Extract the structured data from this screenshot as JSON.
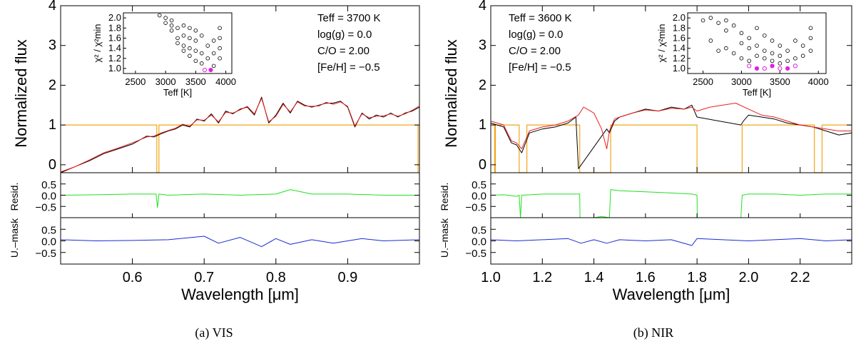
{
  "colors": {
    "observed": "#000000",
    "model": "#e8211e",
    "mask": "#f2a51a",
    "resid": "#22e022",
    "umask_resid": "#1a2bd6",
    "inset_point": "#000000",
    "inset_best": "#e020e0"
  },
  "chart_data": [
    {
      "id": "vis",
      "type": "line",
      "caption": "(a) VIS",
      "xlabel": "Wavelength [μm]",
      "xlim": [
        0.5,
        1.0
      ],
      "xticks": [
        0.6,
        0.7,
        0.8,
        0.9
      ],
      "xtick_labels": [
        "0.6",
        "0.7",
        "0.8",
        "0.9"
      ],
      "main": {
        "ylabel": "Normalized flux",
        "ylim": [
          -0.2,
          4.0
        ],
        "yticks": [
          0,
          1,
          2,
          3,
          4
        ],
        "ytick_labels": [
          "0",
          "1",
          "2",
          "3",
          "4"
        ],
        "legend_lines": [
          "Teff = 3700 K",
          "log(g) = 0.0",
          "C/O = 2.00",
          "[Fe/H] = −0.5"
        ],
        "series": [
          {
            "name": "Observed",
            "x": [
              0.5,
              0.52,
              0.54,
              0.56,
              0.58,
              0.6,
              0.62,
              0.63,
              0.64,
              0.65,
              0.66,
              0.67,
              0.68,
              0.69,
              0.7,
              0.71,
              0.72,
              0.73,
              0.74,
              0.75,
              0.76,
              0.77,
              0.78,
              0.79,
              0.8,
              0.81,
              0.82,
              0.83,
              0.84,
              0.85,
              0.86,
              0.87,
              0.88,
              0.89,
              0.9,
              0.91,
              0.92,
              0.93,
              0.94,
              0.95,
              0.96,
              0.97,
              0.98,
              0.99,
              1.0
            ],
            "y": [
              -0.2,
              -0.05,
              0.1,
              0.28,
              0.4,
              0.52,
              0.72,
              0.7,
              0.78,
              0.85,
              0.9,
              1.0,
              0.95,
              1.15,
              1.1,
              1.28,
              1.05,
              1.35,
              1.28,
              1.4,
              1.45,
              1.25,
              1.7,
              1.05,
              1.25,
              1.55,
              1.3,
              1.6,
              1.5,
              1.45,
              1.5,
              1.55,
              1.55,
              1.6,
              1.45,
              0.95,
              1.3,
              1.15,
              1.25,
              1.2,
              1.3,
              1.2,
              1.3,
              1.35,
              1.45
            ]
          },
          {
            "name": "Model",
            "x": [
              0.5,
              0.52,
              0.54,
              0.56,
              0.58,
              0.6,
              0.62,
              0.63,
              0.64,
              0.65,
              0.66,
              0.67,
              0.68,
              0.69,
              0.7,
              0.71,
              0.72,
              0.73,
              0.74,
              0.75,
              0.76,
              0.77,
              0.78,
              0.79,
              0.8,
              0.81,
              0.82,
              0.83,
              0.84,
              0.85,
              0.86,
              0.87,
              0.88,
              0.89,
              0.9,
              0.91,
              0.92,
              0.93,
              0.94,
              0.95,
              0.96,
              0.97,
              0.98,
              0.99,
              1.0
            ],
            "y": [
              -0.18,
              -0.05,
              0.12,
              0.3,
              0.42,
              0.55,
              0.7,
              0.72,
              0.8,
              0.86,
              0.92,
              1.02,
              0.97,
              1.13,
              1.12,
              1.25,
              1.08,
              1.32,
              1.3,
              1.38,
              1.47,
              1.28,
              1.67,
              1.08,
              1.22,
              1.52,
              1.33,
              1.58,
              1.48,
              1.47,
              1.48,
              1.57,
              1.52,
              1.58,
              1.47,
              0.98,
              1.28,
              1.18,
              1.22,
              1.23,
              1.28,
              1.22,
              1.28,
              1.37,
              1.48
            ]
          },
          {
            "name": "Mask",
            "x": [
              0.5,
              0.634,
              0.634,
              0.637,
              0.637,
              0.998,
              0.998
            ],
            "y": [
              1.0,
              1.0,
              -0.2,
              -0.2,
              1.0,
              1.0,
              -0.2
            ]
          }
        ]
      },
      "resid": {
        "ylabel": "Resid.",
        "ylim": [
          -1.0,
          1.0
        ],
        "yticks": [
          0.5,
          0.0,
          -0.5
        ],
        "ytick_labels": [
          "0.5",
          "0.0",
          "−0.5"
        ],
        "series": [
          {
            "name": "Residual",
            "x": [
              0.5,
              0.55,
              0.6,
              0.633,
              0.635,
              0.637,
              0.65,
              0.7,
              0.75,
              0.8,
              0.82,
              0.85,
              0.9,
              0.95,
              1.0
            ],
            "y": [
              0.0,
              0.02,
              0.05,
              0.05,
              -0.55,
              0.05,
              0.0,
              0.05,
              0.0,
              0.05,
              0.25,
              0.05,
              0.05,
              0.0,
              0.0
            ]
          }
        ]
      },
      "umask": {
        "ylabel": "U.–mask",
        "ylim": [
          -1.0,
          1.0
        ],
        "yticks": [
          0.5,
          0.0,
          -0.5
        ],
        "ytick_labels": [
          "0.5",
          "0.0",
          "−0.5"
        ],
        "series": [
          {
            "name": "Unmasked residual",
            "x": [
              0.5,
              0.55,
              0.6,
              0.65,
              0.7,
              0.72,
              0.75,
              0.78,
              0.8,
              0.82,
              0.85,
              0.88,
              0.9,
              0.92,
              0.95,
              1.0
            ],
            "y": [
              0.05,
              0.0,
              0.02,
              0.05,
              0.2,
              -0.1,
              0.15,
              -0.25,
              0.1,
              -0.15,
              0.05,
              -0.1,
              0.0,
              0.1,
              0.0,
              0.05
            ]
          }
        ]
      },
      "inset": {
        "xlabel": "Teff [K]",
        "ylabel": "χ² / χ²min",
        "xlim": [
          2300,
          4100
        ],
        "ylim": [
          0.9,
          2.1
        ],
        "xticks": [
          2500,
          3000,
          3500,
          4000
        ],
        "xtick_labels": [
          "2500",
          "3000",
          "3500",
          "4000"
        ],
        "yticks": [
          1.0,
          1.2,
          1.4,
          1.6,
          1.8,
          2.0
        ],
        "ytick_labels": [
          "1.0",
          "1.2",
          "1.4",
          "1.6",
          "1.8",
          "2.0"
        ],
        "points_x": [
          2900,
          3000,
          3000,
          3100,
          3100,
          3100,
          3200,
          3200,
          3200,
          3300,
          3300,
          3300,
          3300,
          3400,
          3400,
          3400,
          3400,
          3500,
          3500,
          3500,
          3500,
          3600,
          3600,
          3600,
          3700,
          3700,
          3800,
          3800,
          3800,
          3900,
          3900,
          3900,
          3900
        ],
        "points_y": [
          2.05,
          2.0,
          1.9,
          1.75,
          1.85,
          1.95,
          1.5,
          1.6,
          1.8,
          1.35,
          1.45,
          1.65,
          1.85,
          1.25,
          1.4,
          1.6,
          1.8,
          1.15,
          1.35,
          1.55,
          1.75,
          1.1,
          1.3,
          1.65,
          1.2,
          1.45,
          1.05,
          1.3,
          1.55,
          1.2,
          1.4,
          1.6,
          1.8
        ],
        "best_x": [
          3650,
          3750
        ],
        "best_y": [
          0.97,
          0.97
        ]
      }
    },
    {
      "id": "nir",
      "type": "line",
      "caption": "(b) NIR",
      "xlabel": "Wavelength [μm]",
      "xlim": [
        1.0,
        2.4
      ],
      "xticks": [
        1.0,
        1.2,
        1.4,
        1.6,
        1.8,
        2.0,
        2.2
      ],
      "xtick_labels": [
        "1.0",
        "1.2",
        "1.4",
        "1.6",
        "1.8",
        "2.0",
        "2.2"
      ],
      "main": {
        "ylabel": "Normalized flux",
        "ylim": [
          -0.2,
          4.0
        ],
        "yticks": [
          0,
          1,
          2,
          3,
          4
        ],
        "ytick_labels": [
          "0",
          "1",
          "2",
          "3",
          "4"
        ],
        "legend_lines": [
          "Teff = 3600 K",
          "log(g) = 0.0",
          "C/O = 2.00",
          "[Fe/H] = −0.5"
        ],
        "series": [
          {
            "name": "Observed",
            "x": [
              1.0,
              1.05,
              1.08,
              1.1,
              1.12,
              1.15,
              1.2,
              1.25,
              1.3,
              1.33,
              1.34,
              1.45,
              1.46,
              1.48,
              1.5,
              1.55,
              1.6,
              1.65,
              1.7,
              1.75,
              1.78,
              1.8,
              1.97,
              1.98,
              2.0,
              2.05,
              2.1,
              2.15,
              2.2,
              2.25,
              2.3,
              2.35,
              2.4
            ],
            "y": [
              1.05,
              0.95,
              0.55,
              0.5,
              0.3,
              0.8,
              0.9,
              0.95,
              1.05,
              1.2,
              -0.1,
              0.9,
              0.8,
              1.1,
              1.2,
              1.3,
              1.4,
              1.35,
              1.45,
              1.4,
              1.5,
              1.2,
              1.0,
              1.1,
              1.25,
              1.2,
              1.15,
              1.05,
              1.0,
              0.95,
              0.85,
              0.75,
              0.8
            ]
          },
          {
            "name": "Model",
            "x": [
              1.0,
              1.05,
              1.08,
              1.1,
              1.12,
              1.15,
              1.2,
              1.25,
              1.3,
              1.34,
              1.36,
              1.4,
              1.43,
              1.45,
              1.46,
              1.48,
              1.5,
              1.55,
              1.6,
              1.65,
              1.7,
              1.75,
              1.78,
              1.8,
              1.85,
              1.9,
              1.95,
              2.0,
              2.05,
              2.1,
              2.15,
              2.2,
              2.25,
              2.3,
              2.35,
              2.4
            ],
            "y": [
              1.1,
              1.0,
              0.6,
              0.55,
              0.4,
              0.85,
              0.95,
              1.0,
              1.1,
              1.25,
              1.45,
              1.3,
              0.9,
              0.4,
              0.85,
              1.15,
              1.2,
              1.3,
              1.38,
              1.35,
              1.42,
              1.4,
              1.45,
              1.35,
              1.45,
              1.5,
              1.55,
              1.4,
              1.25,
              1.2,
              1.1,
              1.0,
              0.95,
              0.9,
              0.85,
              0.85
            ]
          },
          {
            "name": "Mask",
            "x": [
              1.0,
              1.015,
              1.015,
              1.018,
              1.018,
              1.11,
              1.11,
              1.14,
              1.14,
              1.345,
              1.345,
              1.465,
              1.465,
              1.8,
              1.8,
              1.975,
              1.975,
              2.255,
              2.255,
              2.285,
              2.285,
              2.4
            ],
            "y": [
              1.0,
              1.0,
              -0.2,
              -0.2,
              1.0,
              1.0,
              -0.2,
              -0.2,
              1.0,
              1.0,
              -0.2,
              -0.2,
              1.0,
              1.0,
              -0.2,
              -0.2,
              1.0,
              1.0,
              -0.2,
              -0.2,
              1.0,
              1.0
            ]
          }
        ]
      },
      "resid": {
        "ylabel": "Resid.",
        "ylim": [
          -1.0,
          1.0
        ],
        "yticks": [
          0.5,
          0.0,
          -0.5
        ],
        "ytick_labels": [
          "0.5",
          "0.0",
          "−0.5"
        ],
        "series": [
          {
            "name": "Residual",
            "x": [
              1.0,
              1.05,
              1.1,
              1.11,
              1.115,
              1.12,
              1.2,
              1.3,
              1.345,
              1.346,
              1.4,
              1.43,
              1.46,
              1.465,
              1.5,
              1.6,
              1.7,
              1.78,
              1.8,
              1.801,
              1.97,
              1.975,
              2.0,
              2.1,
              2.2,
              2.3,
              2.4
            ],
            "y": [
              0.0,
              0.02,
              -0.05,
              0.0,
              -1.0,
              0.0,
              0.05,
              0.05,
              0.05,
              -1.0,
              -1.0,
              -0.95,
              -1.0,
              0.25,
              0.2,
              0.15,
              0.1,
              0.05,
              0.0,
              -1.0,
              -1.0,
              0.0,
              0.05,
              0.05,
              0.0,
              0.05,
              0.05
            ]
          }
        ]
      },
      "umask": {
        "ylabel": "U.–mask",
        "ylim": [
          -1.0,
          1.0
        ],
        "yticks": [
          0.5,
          0.0,
          -0.5
        ],
        "ytick_labels": [
          "0.5",
          "0.0",
          "−0.5"
        ],
        "series": [
          {
            "name": "Unmasked residual",
            "x": [
              1.0,
              1.1,
              1.2,
              1.3,
              1.35,
              1.4,
              1.45,
              1.5,
              1.6,
              1.7,
              1.78,
              1.8,
              1.9,
              2.0,
              2.1,
              2.2,
              2.3,
              2.4
            ],
            "y": [
              0.05,
              0.0,
              0.05,
              0.1,
              -0.1,
              0.05,
              -0.1,
              0.05,
              0.0,
              0.05,
              -0.2,
              0.1,
              0.05,
              0.0,
              0.05,
              0.1,
              0.0,
              0.05
            ]
          }
        ]
      },
      "inset": {
        "xlabel": "Teff [K]",
        "ylabel": "χ² / χ²min",
        "xlim": [
          2300,
          4100
        ],
        "ylim": [
          0.9,
          2.1
        ],
        "xticks": [
          2500,
          3000,
          3500,
          4000
        ],
        "xtick_labels": [
          "2500",
          "3000",
          "3500",
          "4000"
        ],
        "yticks": [
          1.0,
          1.2,
          1.4,
          1.6,
          1.8,
          2.0
        ],
        "ytick_labels": [
          "1.0",
          "1.2",
          "1.4",
          "1.6",
          "1.8",
          "2.0"
        ],
        "points_x": [
          2500,
          2600,
          2600,
          2700,
          2700,
          2800,
          2800,
          2800,
          2900,
          2900,
          3000,
          3000,
          3000,
          3100,
          3100,
          3100,
          3200,
          3200,
          3200,
          3300,
          3300,
          3300,
          3400,
          3400,
          3400,
          3500,
          3500,
          3500,
          3600,
          3600,
          3700,
          3700,
          3800,
          3800,
          3900,
          3900,
          3900
        ],
        "points_y": [
          1.95,
          1.55,
          2.0,
          1.35,
          1.9,
          1.4,
          1.75,
          1.95,
          1.3,
          1.85,
          1.2,
          1.5,
          1.7,
          1.15,
          1.4,
          1.6,
          1.25,
          1.45,
          1.8,
          1.2,
          1.35,
          1.65,
          1.15,
          1.3,
          1.55,
          1.1,
          1.25,
          1.45,
          1.15,
          1.35,
          1.2,
          1.55,
          1.25,
          1.45,
          1.35,
          1.6,
          1.8
        ],
        "best_x": [
          3100,
          3200,
          3300,
          3400,
          3500,
          3600,
          3700
        ],
        "best_y": [
          1.05,
          1.0,
          1.0,
          1.05,
          1.0,
          1.0,
          1.05
        ]
      }
    }
  ]
}
